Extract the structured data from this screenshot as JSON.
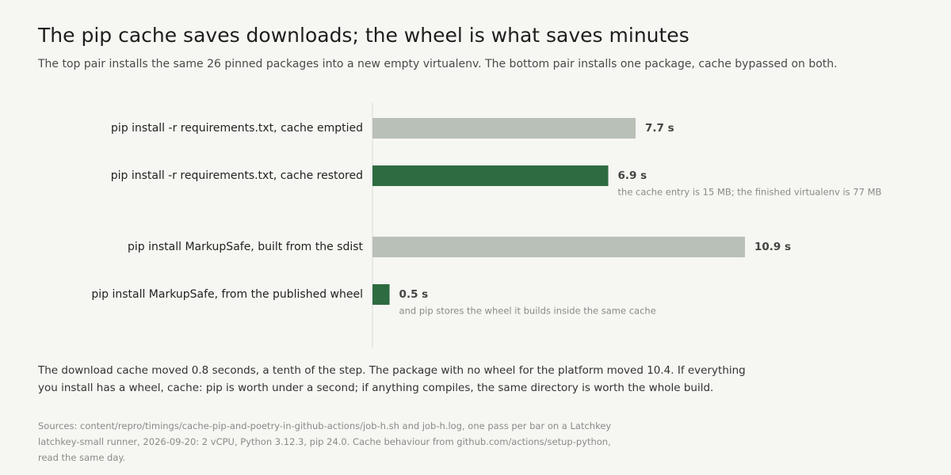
{
  "chart_data": {
    "type": "bar",
    "title": "The pip cache saves downloads; the wheel is what saves minutes",
    "subtitle": "The top pair installs the same 26 pinned packages into a new empty virtualenv. The bottom pair installs one package, cache bypassed on both.",
    "groups": [
      {
        "categories": [
          "pip install -r requirements.txt, cache emptied",
          "pip install -r requirements.txt, cache restored"
        ],
        "values": [
          7.7,
          6.9
        ],
        "value_labels": [
          "7.7 s",
          "6.9 s"
        ],
        "colors": [
          "#b9c0b7",
          "#2e6b40"
        ],
        "notes": [
          null,
          "the cache entry is 15 MB; the finished virtualenv is 77 MB"
        ]
      },
      {
        "categories": [
          "pip install MarkupSafe, built from the sdist",
          "pip install MarkupSafe, from the published wheel"
        ],
        "values": [
          10.9,
          0.5
        ],
        "value_labels": [
          "10.9 s",
          "0.5 s"
        ],
        "colors": [
          "#b9c0b7",
          "#2e6b40"
        ],
        "notes": [
          null,
          "and pip stores the wheel it builds inside the same cache"
        ]
      }
    ],
    "takeaway": "The download cache moved 0.8 seconds, a tenth of the step. The package with no wheel for the platform moved 10.4. If everything you install has a wheel, cache: pip is worth under a second; if anything compiles, the same directory is worth the whole build.",
    "source": "Sources: content/repro/timings/cache-pip-and-poetry-in-github-actions/job-h.sh and job-h.log, one pass per bar on a Latchkey latchkey-small runner, 2026-09-20: 2 vCPU, Python 3.12.3, pip 24.0. Cache behaviour from github.com/actions/setup-python, read the same day."
  }
}
